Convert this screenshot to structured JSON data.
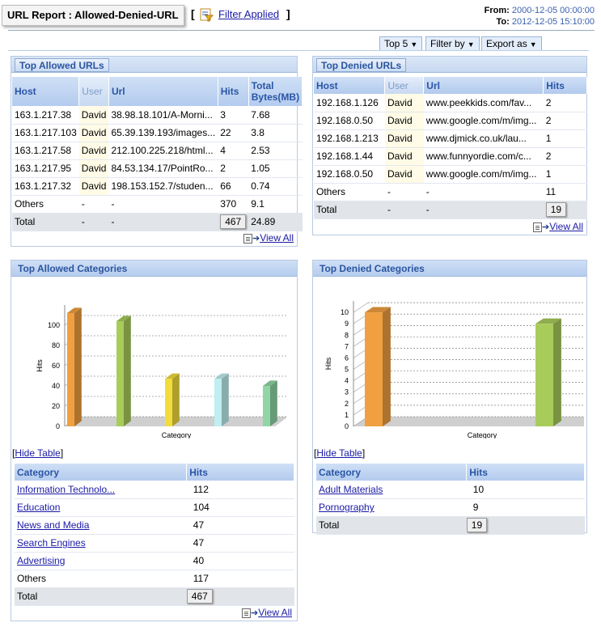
{
  "header": {
    "title": "URL  Report  :  Allowed-Denied-URL",
    "bracket_open": "[",
    "bracket_close": "]",
    "filter_link": "Filter  Applied",
    "from_label": "From:",
    "from_value": "2000-12-05  00:00:00",
    "to_label": "To:",
    "to_value": "2012-12-05  15:10:00"
  },
  "toolbar": {
    "top_label": "Top 5",
    "filter_label": "Filter by",
    "export_label": "Export as"
  },
  "allowed_urls": {
    "title": "Top Allowed URLs",
    "columns": [
      "Host",
      "User",
      "Url",
      "Hits",
      "Total Bytes(MB)"
    ],
    "col_total_1": "Total",
    "col_total_2": "Bytes(MB)",
    "rows": [
      {
        "host": "163.1.217.38",
        "user": "David",
        "url": "38.98.18.101/A-Morni...",
        "hits": "3",
        "bytes": "7.68"
      },
      {
        "host": "163.1.217.103",
        "user": "David",
        "url": "65.39.139.193/images...",
        "hits": "22",
        "bytes": "3.8"
      },
      {
        "host": "163.1.217.58",
        "user": "David",
        "url": "212.100.225.218/html...",
        "hits": "4",
        "bytes": "2.53"
      },
      {
        "host": "163.1.217.95",
        "user": "David",
        "url": "84.53.134.17/PointRo...",
        "hits": "2",
        "bytes": "1.05"
      },
      {
        "host": "163.1.217.32",
        "user": "David",
        "url": "198.153.152.7/studen...",
        "hits": "66",
        "bytes": "0.74"
      }
    ],
    "others": {
      "host": "Others",
      "user": "-",
      "url": "-",
      "hits": "370",
      "bytes": "9.1"
    },
    "total": {
      "host": "Total",
      "user": "-",
      "url": "-",
      "hits": "467",
      "bytes": "24.89"
    },
    "view_all": "View All"
  },
  "denied_urls": {
    "title": "Top Denied URLs",
    "columns": [
      "Host",
      "User",
      "Url",
      "Hits"
    ],
    "rows": [
      {
        "host": "192.168.1.126",
        "user": "David",
        "url": "www.peekkids.com/fav...",
        "hits": "2"
      },
      {
        "host": "192.168.0.50",
        "user": "David",
        "url": "www.google.com/m/img...",
        "hits": "2"
      },
      {
        "host": "192.168.1.213",
        "user": "David",
        "url": "www.djmick.co.uk/lau...",
        "hits": "1"
      },
      {
        "host": "192.168.1.44",
        "user": "David",
        "url": "www.funnyordie.com/c...",
        "hits": "2"
      },
      {
        "host": "192.168.0.50",
        "user": "David",
        "url": "www.google.com/m/img...",
        "hits": "1"
      }
    ],
    "others": {
      "host": "Others",
      "user": "-",
      "url": "-",
      "hits": "11"
    },
    "total": {
      "host": "Total",
      "user": "-",
      "url": "-",
      "hits": "19"
    },
    "view_all": "View All"
  },
  "allowed_categories": {
    "title": "Top Allowed Categories",
    "hide_table": "Hide Table",
    "columns": [
      "Category",
      "Hits"
    ],
    "rows": [
      {
        "category": "Information Technolo...",
        "hits": "112"
      },
      {
        "category": "Education",
        "hits": "104"
      },
      {
        "category": "News and Media",
        "hits": "47"
      },
      {
        "category": "Search Engines",
        "hits": "47"
      },
      {
        "category": "Advertising",
        "hits": "40"
      }
    ],
    "others": {
      "category": "Others",
      "hits": "117"
    },
    "total": {
      "category": "Total",
      "hits": "467"
    },
    "view_all": "View All"
  },
  "denied_categories": {
    "title": "Top Denied Categories",
    "hide_table": "Hide Table",
    "columns": [
      "Category",
      "Hits"
    ],
    "rows": [
      {
        "category": "Adult Materials",
        "hits": "10"
      },
      {
        "category": "Pornography",
        "hits": "9"
      }
    ],
    "total": {
      "category": "Total",
      "hits": "19"
    }
  },
  "chart_data": [
    {
      "type": "bar",
      "title": "",
      "xlabel": "Category",
      "ylabel": "Hits",
      "categories": [
        "Information Technolo...",
        "Education",
        "News and Media",
        "Search Engines",
        "Advertising"
      ],
      "values": [
        112,
        104,
        47,
        47,
        40
      ],
      "colors": [
        "#f0a040",
        "#a8cc5a",
        "#f2dc3c",
        "#bfeff0",
        "#8fd6a4"
      ],
      "yticks": [
        0,
        20,
        40,
        60,
        80,
        100
      ],
      "ylim": [
        0,
        120
      ],
      "grid": true
    },
    {
      "type": "bar",
      "title": "",
      "xlabel": "Category",
      "ylabel": "Hits",
      "categories": [
        "Adult Materials",
        "Pornography"
      ],
      "values": [
        10,
        9
      ],
      "colors": [
        "#f0a040",
        "#a8cc5a"
      ],
      "yticks": [
        0,
        1,
        2,
        3,
        4,
        5,
        6,
        7,
        8,
        9,
        10
      ],
      "ylim": [
        0,
        11
      ],
      "grid": true
    }
  ]
}
